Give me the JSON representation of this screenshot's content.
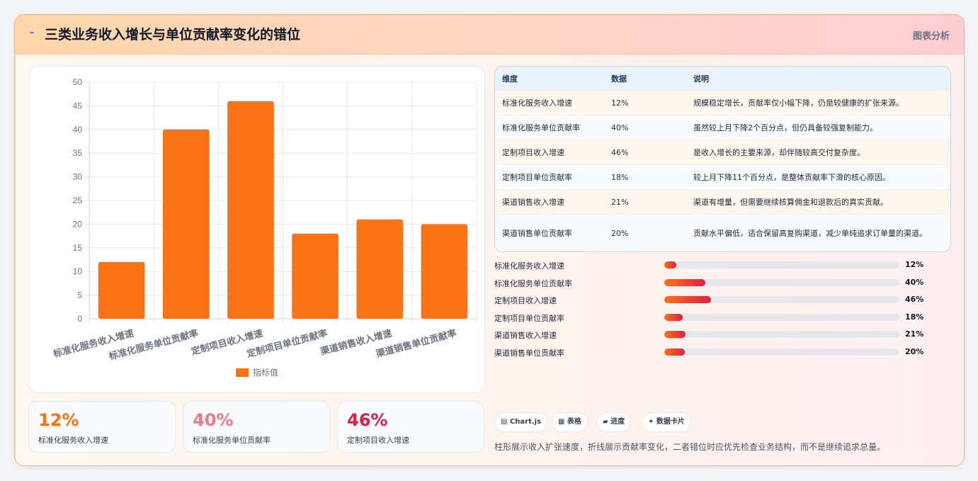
{
  "header": {
    "icon": "bolt-icon",
    "title": "三类业务收入增长与单位贡献率变化的错位",
    "tag": "图表分析"
  },
  "chart_data": {
    "type": "bar",
    "categories": [
      "标准化服务收入增速",
      "标准化服务单位贡献率",
      "定制项目收入增速",
      "定制项目单位贡献率",
      "渠道销售收入增速",
      "渠道销售单位贡献率"
    ],
    "series": [
      {
        "name": "指标值",
        "values": [
          12,
          40,
          46,
          18,
          21,
          20
        ]
      }
    ],
    "ylim": [
      0,
      50
    ],
    "yticks": [
      0,
      5,
      10,
      15,
      20,
      25,
      30,
      35,
      40,
      45,
      50
    ],
    "grid": true,
    "legend": "bottom",
    "color": "#f97316"
  },
  "kpis": [
    {
      "value": "12%",
      "label": "标准化服务收入增速",
      "color": "#f97316"
    },
    {
      "value": "40%",
      "label": "标准化服务单位贡献率",
      "color": "#f07887"
    },
    {
      "value": "46%",
      "label": "定制项目收入增速",
      "color": "#e11d48"
    }
  ],
  "table": {
    "headers": [
      "维度",
      "数据",
      "说明"
    ],
    "rows": [
      {
        "dim": "标准化服务收入增速",
        "val": "12%",
        "desc": "规模稳定增长，贡献率仅小幅下降，仍是较健康的扩张来源。"
      },
      {
        "dim": "标准化服务单位贡献率",
        "val": "40%",
        "desc": "虽然较上月下降2个百分点，但仍具备较强复制能力。"
      },
      {
        "dim": "定制项目收入增速",
        "val": "46%",
        "desc": "是收入增长的主要来源，却伴随较高交付复杂度。"
      },
      {
        "dim": "定制项目单位贡献率",
        "val": "18%",
        "desc": "较上月下降11个百分点，是整体贡献率下滑的核心原因。"
      },
      {
        "dim": "渠道销售收入增速",
        "val": "21%",
        "desc": "渠道有增量，但需要继续核算佣金和退款后的真实贡献。"
      },
      {
        "dim": "渠道销售单位贡献率",
        "val": "20%",
        "desc": "贡献水平偏低，适合保留高复购渠道，减少单纯追求订单量的渠道。"
      }
    ]
  },
  "progress": [
    {
      "label": "标准化服务收入增速",
      "value": 12,
      "text": "12%"
    },
    {
      "label": "标准化服务单位贡献率",
      "value": 40,
      "text": "40%"
    },
    {
      "label": "定制项目收入增速",
      "value": 46,
      "text": "46%"
    },
    {
      "label": "定制项目单位贡献率",
      "value": 18,
      "text": "18%"
    },
    {
      "label": "渠道销售收入增速",
      "value": 21,
      "text": "21%"
    },
    {
      "label": "渠道销售单位贡献率",
      "value": 20,
      "text": "20%"
    }
  ],
  "progress_scale_max": 230,
  "chips": [
    "▤ Chart.js",
    "▦ 表格",
    "▰ 进度",
    "✦ 数据卡片"
  ],
  "footnote": "柱形展示收入扩张速度，折线展示贡献率变化，二者错位时应优先检查业务结构，而不是继续追求总量。"
}
